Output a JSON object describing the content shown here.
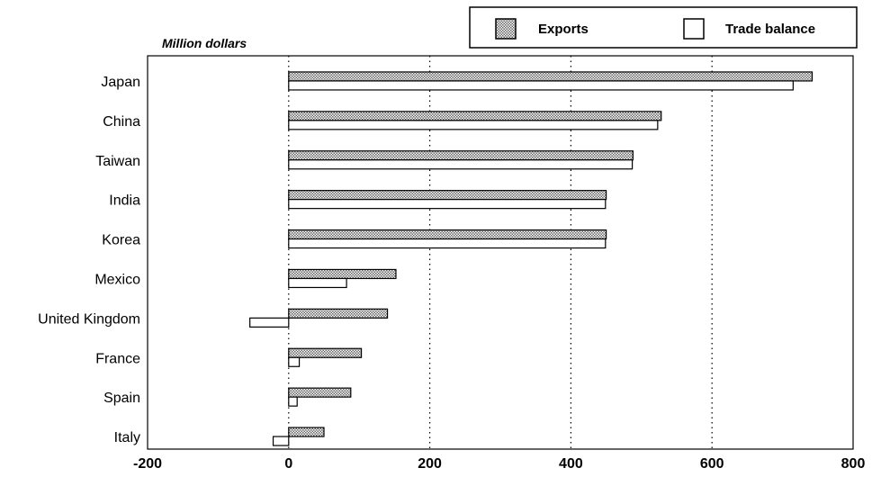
{
  "chart_data": {
    "type": "bar",
    "orientation": "horizontal",
    "unit_label": "Million dollars",
    "categories": [
      "Japan",
      "China",
      "Taiwan",
      "India",
      "Korea",
      "Mexico",
      "United Kingdom",
      "France",
      "Spain",
      "Italy"
    ],
    "series": [
      {
        "name": "Exports",
        "fill": "dotted-gray",
        "values": [
          742,
          528,
          488,
          450,
          450,
          152,
          140,
          103,
          88,
          50
        ]
      },
      {
        "name": "Trade balance",
        "fill": "white",
        "values": [
          715,
          523,
          487,
          449,
          449,
          82,
          -55,
          15,
          12,
          -22
        ]
      }
    ],
    "xlim": [
      -200,
      800
    ],
    "xticks": [
      "-200",
      "0",
      "200",
      "400",
      "600",
      "800"
    ],
    "grid": "vertical-dotted",
    "legend_position": "top-right"
  }
}
